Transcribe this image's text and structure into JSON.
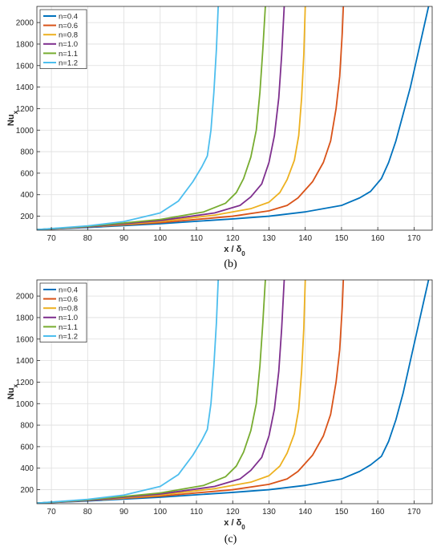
{
  "chart_data": [
    {
      "type": "line",
      "caption": "(b)",
      "xlabel": "x / δ",
      "xlabel_sub": "0",
      "ylabel": "Nu",
      "ylabel_sub": "x",
      "xlim": [
        66,
        175
      ],
      "ylim": [
        70,
        2150
      ],
      "xticks": [
        70,
        80,
        90,
        100,
        110,
        120,
        130,
        140,
        150,
        160,
        170
      ],
      "yticks": [
        200,
        400,
        600,
        800,
        1000,
        1200,
        1400,
        1600,
        1800,
        2000
      ],
      "grid": true,
      "legend_position": "top-left",
      "series": [
        {
          "name": "n=0.4",
          "color": "#0072BD",
          "x": [
            66,
            80,
            100,
            120,
            130,
            140,
            150,
            155,
            158,
            161,
            163,
            165,
            167,
            169,
            171,
            173,
            174
          ],
          "y": [
            75,
            95,
            130,
            175,
            200,
            240,
            300,
            370,
            430,
            550,
            700,
            900,
            1150,
            1400,
            1700,
            2000,
            2150
          ]
        },
        {
          "name": "n=0.6",
          "color": "#D95319",
          "x": [
            66,
            80,
            100,
            120,
            130,
            135,
            138,
            142,
            145,
            147,
            148.5,
            149.5,
            150.2,
            150.5
          ],
          "y": [
            75,
            100,
            140,
            200,
            250,
            300,
            370,
            520,
            700,
            900,
            1200,
            1500,
            1900,
            2150
          ]
        },
        {
          "name": "n=0.8",
          "color": "#EDB120",
          "x": [
            66,
            80,
            100,
            115,
            125,
            130,
            133,
            135,
            137,
            138.2,
            139,
            139.6,
            140
          ],
          "y": [
            75,
            100,
            150,
            210,
            270,
            330,
            420,
            540,
            720,
            950,
            1300,
            1700,
            2150
          ]
        },
        {
          "name": "n=1.0",
          "color": "#7E2F8E",
          "x": [
            66,
            80,
            100,
            115,
            122,
            125,
            128,
            130,
            131.5,
            132.7,
            133.5,
            134.2
          ],
          "y": [
            75,
            100,
            160,
            230,
            300,
            380,
            500,
            700,
            950,
            1300,
            1700,
            2150
          ]
        },
        {
          "name": "n=1.1",
          "color": "#77AC30",
          "x": [
            66,
            80,
            100,
            112,
            118,
            121,
            123,
            125,
            126.5,
            127.5,
            128.3,
            129
          ],
          "y": [
            75,
            105,
            170,
            240,
            320,
            420,
            550,
            750,
            1000,
            1350,
            1750,
            2150
          ]
        },
        {
          "name": "n=1.2",
          "color": "#4DBEEE",
          "x": [
            66,
            80,
            90,
            100,
            105,
            109,
            111.5,
            113,
            114,
            114.8,
            115.5,
            116
          ],
          "y": [
            75,
            110,
            150,
            230,
            340,
            520,
            660,
            760,
            1000,
            1350,
            1750,
            2150
          ]
        }
      ]
    },
    {
      "type": "line",
      "caption": "(c)",
      "xlabel": "x / δ",
      "xlabel_sub": "0",
      "ylabel": "Nu",
      "ylabel_sub": "x",
      "xlim": [
        66,
        175
      ],
      "ylim": [
        70,
        2150
      ],
      "xticks": [
        70,
        80,
        90,
        100,
        110,
        120,
        130,
        140,
        150,
        160,
        170
      ],
      "yticks": [
        200,
        400,
        600,
        800,
        1000,
        1200,
        1400,
        1600,
        1800,
        2000
      ],
      "grid": true,
      "legend_position": "top-left",
      "series": [
        {
          "name": "n=0.4",
          "color": "#0072BD",
          "x": [
            66,
            80,
            100,
            120,
            130,
            140,
            150,
            155,
            158,
            161,
            163,
            165,
            167,
            169,
            171,
            173,
            174
          ],
          "y": [
            75,
            95,
            130,
            175,
            200,
            240,
            300,
            370,
            430,
            510,
            650,
            850,
            1100,
            1400,
            1700,
            2000,
            2150
          ]
        },
        {
          "name": "n=0.6",
          "color": "#D95319",
          "x": [
            66,
            80,
            100,
            120,
            130,
            135,
            138,
            142,
            145,
            147,
            148.5,
            149.5,
            150.2,
            150.5
          ],
          "y": [
            75,
            100,
            140,
            200,
            250,
            300,
            370,
            520,
            700,
            900,
            1200,
            1500,
            1900,
            2150
          ]
        },
        {
          "name": "n=0.8",
          "color": "#EDB120",
          "x": [
            66,
            80,
            100,
            115,
            125,
            130,
            133,
            135,
            137,
            138.2,
            139,
            139.6,
            140
          ],
          "y": [
            75,
            100,
            150,
            210,
            270,
            330,
            420,
            540,
            720,
            950,
            1300,
            1700,
            2150
          ]
        },
        {
          "name": "n=1.0",
          "color": "#7E2F8E",
          "x": [
            66,
            80,
            100,
            115,
            122,
            125,
            128,
            130,
            131.5,
            132.7,
            133.5,
            134.2
          ],
          "y": [
            75,
            100,
            160,
            230,
            300,
            380,
            500,
            700,
            950,
            1300,
            1700,
            2150
          ]
        },
        {
          "name": "n=1.1",
          "color": "#77AC30",
          "x": [
            66,
            80,
            100,
            112,
            118,
            121,
            123,
            125,
            126.5,
            127.5,
            128.3,
            129
          ],
          "y": [
            75,
            105,
            170,
            240,
            320,
            420,
            550,
            750,
            1000,
            1350,
            1750,
            2150
          ]
        },
        {
          "name": "n=1.2",
          "color": "#4DBEEE",
          "x": [
            66,
            80,
            90,
            100,
            105,
            109,
            111.5,
            113,
            114,
            114.8,
            115.5,
            116
          ],
          "y": [
            75,
            110,
            150,
            230,
            340,
            520,
            660,
            760,
            1000,
            1350,
            1750,
            2150
          ]
        }
      ]
    }
  ]
}
